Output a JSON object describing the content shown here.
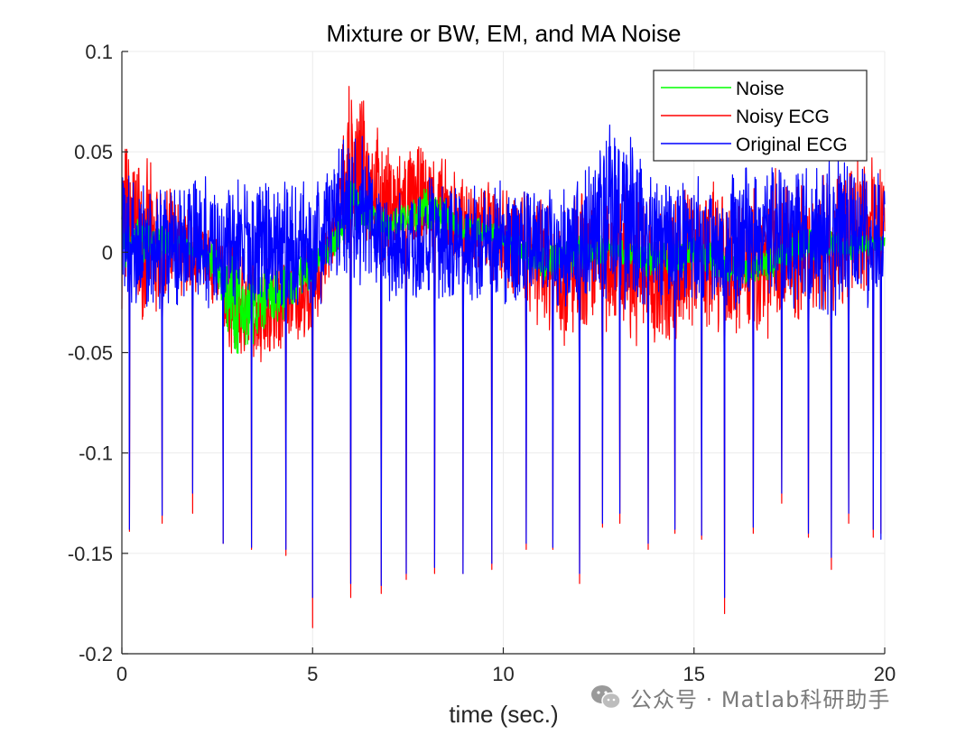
{
  "chart_data": {
    "type": "line",
    "title": "Mixture or BW, EM, and MA Noise",
    "xlabel": "time (sec.)",
    "ylabel": "",
    "xlim": [
      0,
      20
    ],
    "ylim": [
      -0.2,
      0.1
    ],
    "xticks": [
      0,
      5,
      10,
      15,
      20
    ],
    "xtick_labels": [
      "0",
      "5",
      "10",
      "15",
      "20"
    ],
    "yticks": [
      0.1,
      0.05,
      0,
      -0.05,
      -0.1,
      -0.15,
      -0.2
    ],
    "ytick_labels": [
      "0.1",
      "0.05",
      "0",
      "-0.05",
      "-0.1",
      "-0.15",
      "-0.2"
    ],
    "grid": true,
    "legend_position": "top-right",
    "colors": {
      "noise": "#00ff00",
      "noisy": "#ff0000",
      "original": "#0000ff",
      "grid": "#ebebeb",
      "axis": "#262626"
    },
    "series": [
      {
        "name": "Noise",
        "color": "#00ff00",
        "envelope": [
          {
            "t": 0.0,
            "lo": -0.01,
            "hi": 0.02
          },
          {
            "t": 1.0,
            "lo": -0.005,
            "hi": 0.015
          },
          {
            "t": 2.0,
            "lo": -0.005,
            "hi": 0.008
          },
          {
            "t": 2.5,
            "lo": -0.02,
            "hi": 0.005
          },
          {
            "t": 3.0,
            "lo": -0.063,
            "hi": 0.0
          },
          {
            "t": 3.5,
            "lo": -0.045,
            "hi": -0.005
          },
          {
            "t": 4.0,
            "lo": -0.04,
            "hi": -0.005
          },
          {
            "t": 4.5,
            "lo": -0.03,
            "hi": 0.0
          },
          {
            "t": 5.0,
            "lo": -0.02,
            "hi": 0.005
          },
          {
            "t": 5.5,
            "lo": -0.005,
            "hi": 0.01
          },
          {
            "t": 6.0,
            "lo": 0.01,
            "hi": 0.04
          },
          {
            "t": 7.0,
            "lo": 0.005,
            "hi": 0.02
          },
          {
            "t": 8.0,
            "lo": 0.01,
            "hi": 0.035
          },
          {
            "t": 9.0,
            "lo": 0.005,
            "hi": 0.02
          },
          {
            "t": 10.0,
            "lo": 0.0,
            "hi": 0.015
          },
          {
            "t": 11.0,
            "lo": -0.015,
            "hi": 0.005
          },
          {
            "t": 12.0,
            "lo": -0.01,
            "hi": 0.01
          },
          {
            "t": 13.0,
            "lo": -0.005,
            "hi": 0.01
          },
          {
            "t": 14.0,
            "lo": -0.015,
            "hi": 0.005
          },
          {
            "t": 15.0,
            "lo": -0.01,
            "hi": 0.01
          },
          {
            "t": 16.0,
            "lo": -0.02,
            "hi": 0.0
          },
          {
            "t": 17.0,
            "lo": -0.015,
            "hi": 0.005
          },
          {
            "t": 18.0,
            "lo": -0.005,
            "hi": 0.015
          },
          {
            "t": 19.0,
            "lo": -0.005,
            "hi": 0.01
          },
          {
            "t": 20.0,
            "lo": 0.0,
            "hi": 0.01
          }
        ]
      },
      {
        "name": "Noisy ECG",
        "color": "#ff0000",
        "envelope": [
          {
            "t": 0.0,
            "lo": -0.03,
            "hi": 0.064
          },
          {
            "t": 1.0,
            "lo": -0.04,
            "hi": 0.04
          },
          {
            "t": 2.0,
            "lo": -0.02,
            "hi": 0.02
          },
          {
            "t": 2.5,
            "lo": -0.035,
            "hi": 0.015
          },
          {
            "t": 3.0,
            "lo": -0.06,
            "hi": 0.01
          },
          {
            "t": 3.5,
            "lo": -0.058,
            "hi": 0.0
          },
          {
            "t": 4.0,
            "lo": -0.055,
            "hi": 0.005
          },
          {
            "t": 4.5,
            "lo": -0.045,
            "hi": 0.0
          },
          {
            "t": 5.0,
            "lo": -0.05,
            "hi": 0.01
          },
          {
            "t": 5.5,
            "lo": -0.01,
            "hi": 0.02
          },
          {
            "t": 6.0,
            "lo": 0.005,
            "hi": 0.089
          },
          {
            "t": 7.0,
            "lo": -0.01,
            "hi": 0.055
          },
          {
            "t": 8.0,
            "lo": 0.0,
            "hi": 0.055
          },
          {
            "t": 9.0,
            "lo": -0.015,
            "hi": 0.04
          },
          {
            "t": 10.0,
            "lo": -0.02,
            "hi": 0.04
          },
          {
            "t": 11.0,
            "lo": -0.04,
            "hi": 0.03
          },
          {
            "t": 12.0,
            "lo": -0.055,
            "hi": 0.035
          },
          {
            "t": 13.0,
            "lo": -0.04,
            "hi": 0.04
          },
          {
            "t": 14.0,
            "lo": -0.06,
            "hi": 0.03
          },
          {
            "t": 15.0,
            "lo": -0.04,
            "hi": 0.04
          },
          {
            "t": 16.0,
            "lo": -0.05,
            "hi": 0.035
          },
          {
            "t": 17.0,
            "lo": -0.045,
            "hi": 0.045
          },
          {
            "t": 18.0,
            "lo": -0.035,
            "hi": 0.04
          },
          {
            "t": 19.0,
            "lo": -0.03,
            "hi": 0.05
          },
          {
            "t": 20.0,
            "lo": -0.01,
            "hi": 0.049
          }
        ],
        "spike_minima": [
          -0.139,
          -0.135,
          -0.13,
          -0.145,
          -0.148,
          -0.151,
          -0.187,
          -0.172,
          -0.17,
          -0.163,
          -0.16,
          -0.16,
          -0.158,
          -0.148,
          -0.148,
          -0.165,
          -0.137,
          -0.135,
          -0.148,
          -0.14,
          -0.143,
          -0.18,
          -0.14,
          -0.125,
          -0.142,
          -0.158,
          -0.135,
          -0.142,
          -0.14
        ]
      },
      {
        "name": "Original ECG",
        "color": "#0000ff",
        "envelope": [
          {
            "t": 0.0,
            "lo": -0.03,
            "hi": 0.04
          },
          {
            "t": 1.0,
            "lo": -0.03,
            "hi": 0.035
          },
          {
            "t": 2.0,
            "lo": -0.03,
            "hi": 0.04
          },
          {
            "t": 3.0,
            "lo": -0.035,
            "hi": 0.04
          },
          {
            "t": 4.0,
            "lo": -0.035,
            "hi": 0.04
          },
          {
            "t": 5.0,
            "lo": -0.03,
            "hi": 0.035
          },
          {
            "t": 6.0,
            "lo": -0.02,
            "hi": 0.075
          },
          {
            "t": 7.0,
            "lo": -0.03,
            "hi": 0.035
          },
          {
            "t": 8.0,
            "lo": -0.03,
            "hi": 0.04
          },
          {
            "t": 9.0,
            "lo": -0.03,
            "hi": 0.04
          },
          {
            "t": 10.0,
            "lo": -0.03,
            "hi": 0.04
          },
          {
            "t": 11.0,
            "lo": -0.03,
            "hi": 0.035
          },
          {
            "t": 12.0,
            "lo": -0.03,
            "hi": 0.04
          },
          {
            "t": 13.0,
            "lo": -0.03,
            "hi": 0.075
          },
          {
            "t": 14.0,
            "lo": -0.03,
            "hi": 0.04
          },
          {
            "t": 15.0,
            "lo": -0.03,
            "hi": 0.04
          },
          {
            "t": 16.0,
            "lo": -0.03,
            "hi": 0.045
          },
          {
            "t": 17.0,
            "lo": -0.03,
            "hi": 0.05
          },
          {
            "t": 18.0,
            "lo": -0.035,
            "hi": 0.045
          },
          {
            "t": 19.0,
            "lo": -0.035,
            "hi": 0.05
          },
          {
            "t": 20.0,
            "lo": -0.03,
            "hi": 0.045
          }
        ],
        "spike_times": [
          0.2,
          1.05,
          1.85,
          2.65,
          3.4,
          4.3,
          5.0,
          6.0,
          6.8,
          7.45,
          8.2,
          8.95,
          9.7,
          10.6,
          11.3,
          12.0,
          12.6,
          13.05,
          13.8,
          14.5,
          15.2,
          15.8,
          16.55,
          17.3,
          18.0,
          18.6,
          19.05,
          19.7,
          19.9
        ],
        "spike_minima": [
          -0.138,
          -0.131,
          -0.12,
          -0.145,
          -0.147,
          -0.148,
          -0.172,
          -0.165,
          -0.166,
          -0.16,
          -0.157,
          -0.16,
          -0.155,
          -0.145,
          -0.147,
          -0.16,
          -0.135,
          -0.13,
          -0.145,
          -0.138,
          -0.141,
          -0.172,
          -0.137,
          -0.12,
          -0.14,
          -0.152,
          -0.13,
          -0.138,
          -0.143
        ]
      }
    ]
  },
  "watermark": {
    "text": "公众号 · Matlab科研助手",
    "icon": "wechat-icon"
  }
}
